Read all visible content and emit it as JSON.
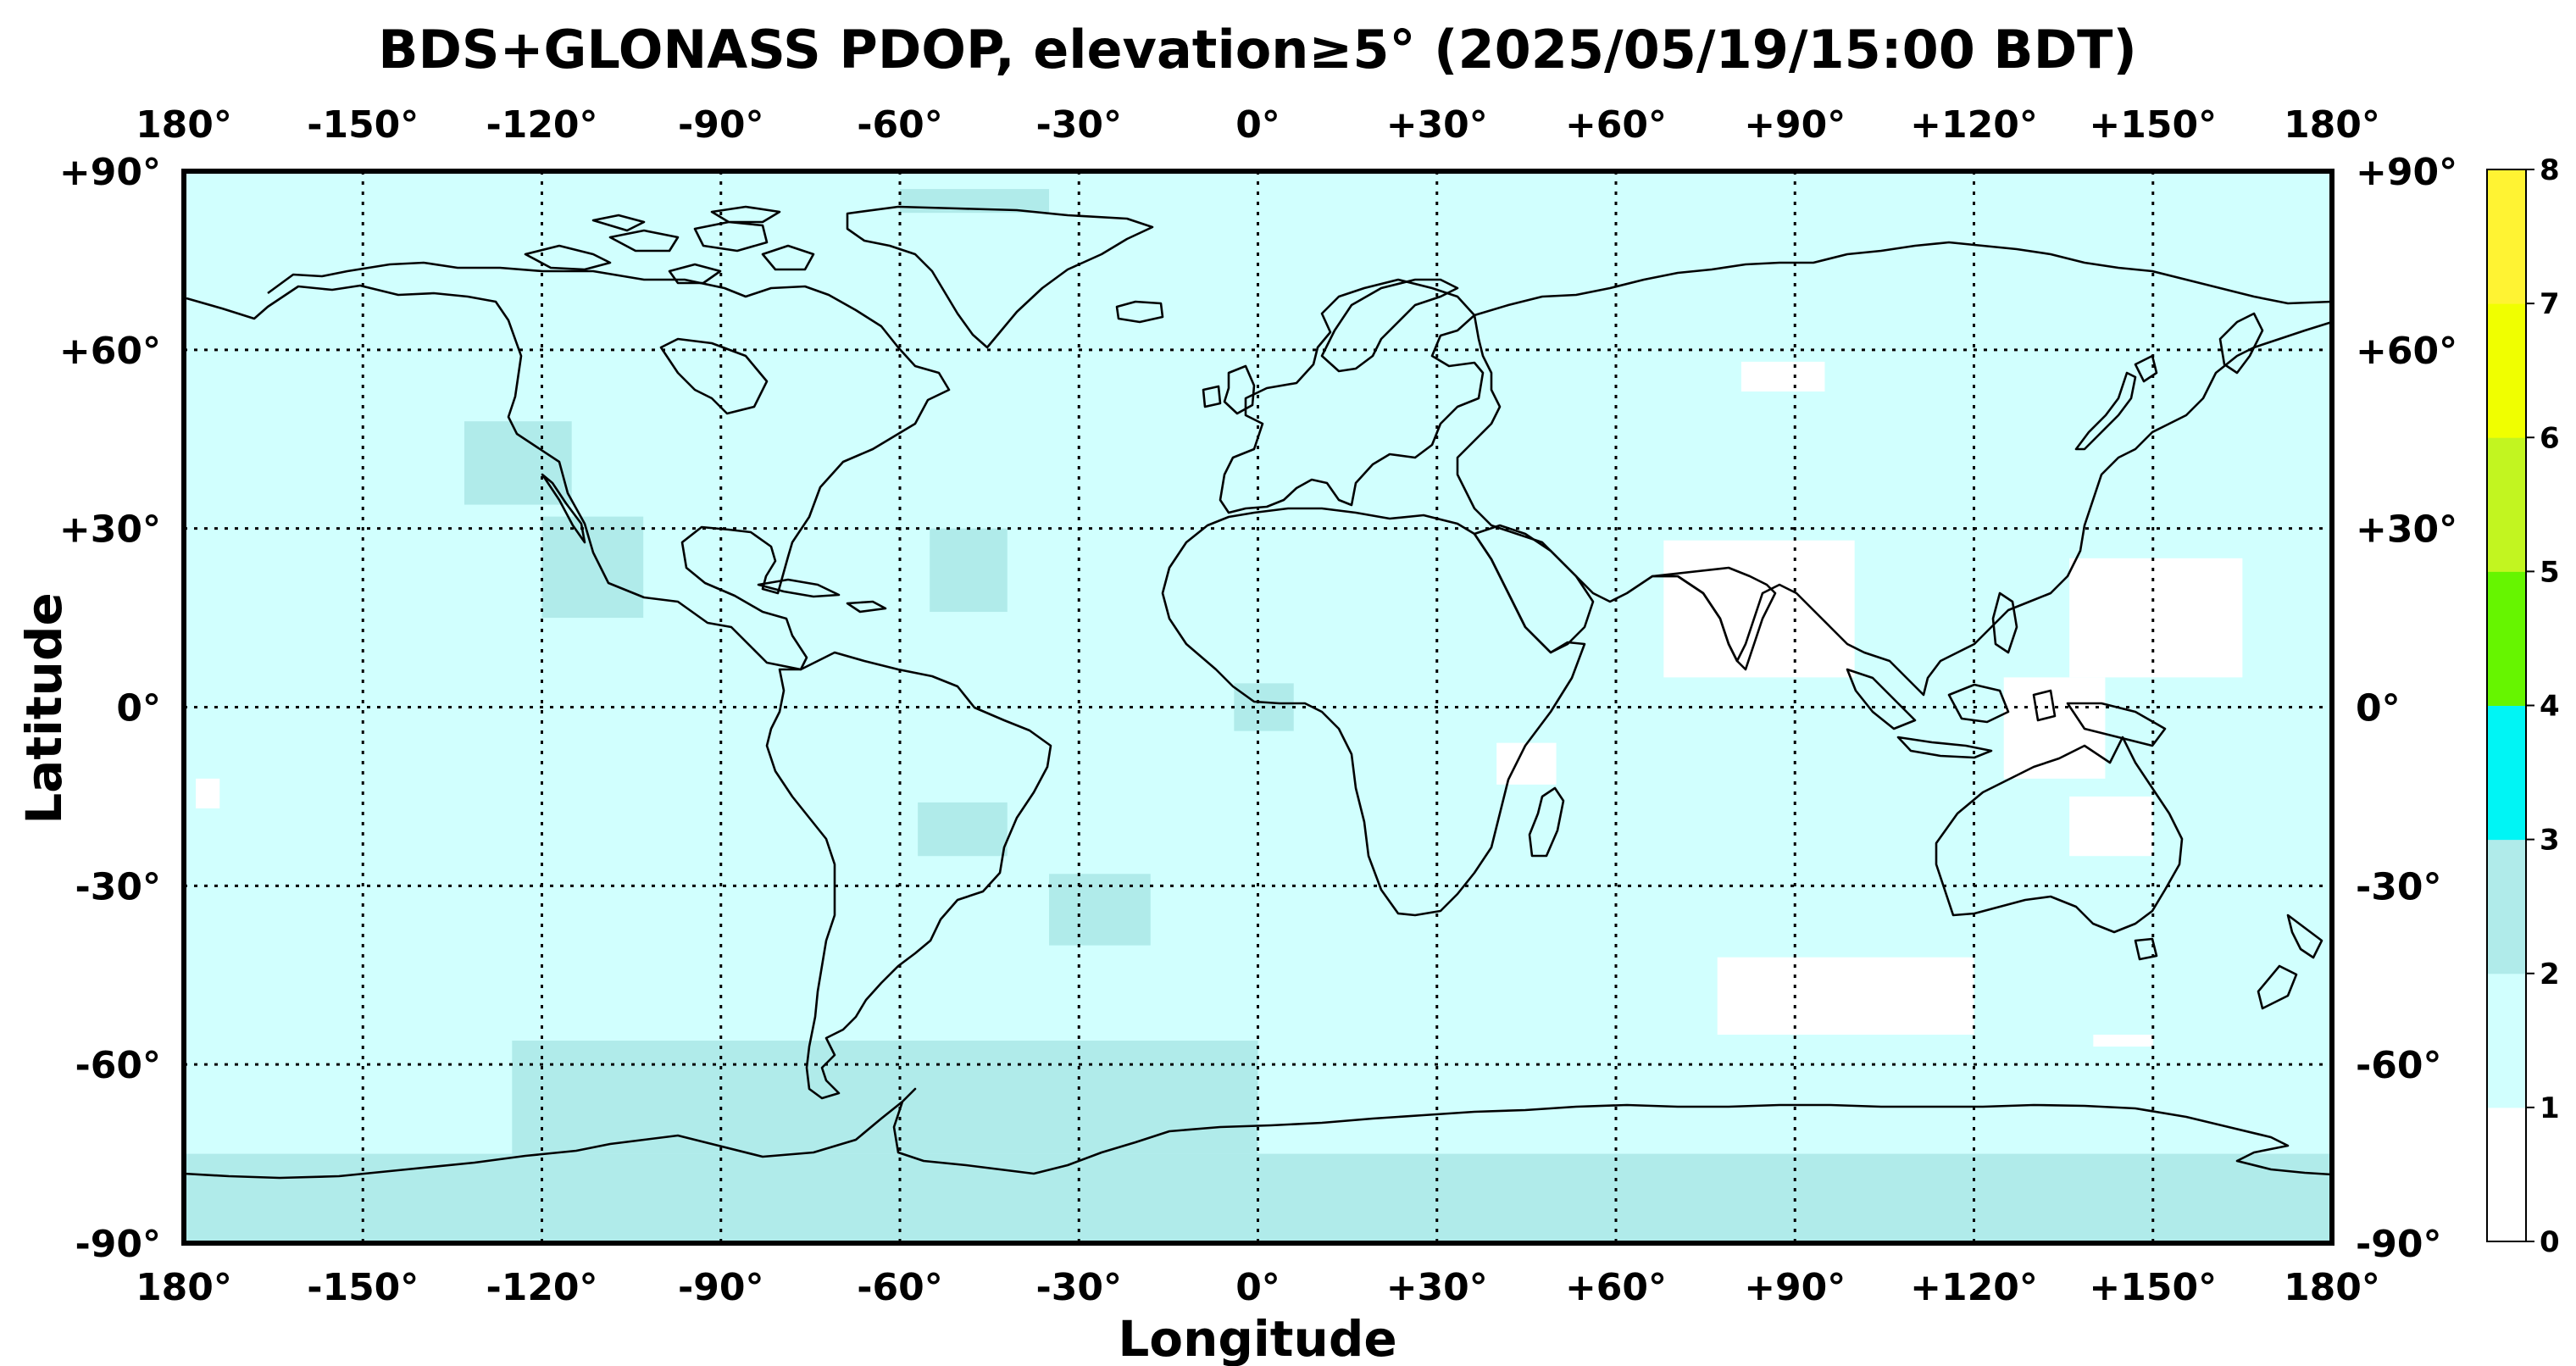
{
  "title": "BDS+GLONASS PDOP, elevation≥5° (2025/05/19/15:00 BDT)",
  "xlabel": "Longitude",
  "ylabel": "Latitude",
  "map": {
    "projection": "equirectangular",
    "lon_range": [
      -180,
      180
    ],
    "lat_range": [
      -90,
      90
    ],
    "lon_ticks": [
      -180,
      -150,
      -120,
      -90,
      -60,
      -30,
      0,
      30,
      60,
      90,
      120,
      150,
      180
    ],
    "lon_tick_labels": [
      "180°",
      "-150°",
      "-120°",
      "-90°",
      "-60°",
      "-30°",
      "0°",
      "+30°",
      "+60°",
      "+90°",
      "+120°",
      "+150°",
      "180°"
    ],
    "lat_ticks": [
      90,
      60,
      30,
      0,
      -30,
      -60,
      -90
    ],
    "lat_tick_labels": [
      "+90°",
      "+60°",
      "+30°",
      "0°",
      "-30°",
      "-60°",
      "-90°"
    ],
    "grid": true,
    "grid_style": "dotted",
    "background_pdop_class": "1-2",
    "coastline_color": "#000000"
  },
  "colorbar": {
    "ticks": [
      "0",
      "1",
      "2",
      "3",
      "4",
      "5",
      "6",
      "7",
      "8"
    ],
    "bins": [
      {
        "range": [
          0,
          1
        ],
        "color": "#ffffff"
      },
      {
        "range": [
          1,
          2
        ],
        "color": "#d1fffe"
      },
      {
        "range": [
          2,
          3
        ],
        "color": "#b0ebea"
      },
      {
        "range": [
          3,
          4
        ],
        "color": "#00f5f5"
      },
      {
        "range": [
          4,
          5
        ],
        "color": "#66f500"
      },
      {
        "range": [
          5,
          6
        ],
        "color": "#c2f520"
      },
      {
        "range": [
          6,
          7
        ],
        "color": "#f0ff00"
      },
      {
        "range": [
          7,
          8
        ],
        "color": "#fff333"
      }
    ]
  },
  "pdop_regions": [
    {
      "class": "0-1",
      "color": "#ffffff",
      "area": "Southern Asia / Indian Ocean",
      "lon": [
        68,
        100
      ],
      "lat": [
        5,
        28
      ]
    },
    {
      "class": "0-1",
      "color": "#ffffff",
      "area": "Western Pacific",
      "lon": [
        136,
        165
      ],
      "lat": [
        5,
        25
      ]
    },
    {
      "class": "0-1",
      "color": "#ffffff",
      "area": "Western Pacific",
      "lon": [
        125,
        142
      ],
      "lat": [
        -12,
        5
      ]
    },
    {
      "class": "0-1",
      "color": "#ffffff",
      "area": "Australia",
      "lon": [
        136,
        150
      ],
      "lat": [
        -25,
        -15
      ]
    },
    {
      "class": "0-1",
      "color": "#ffffff",
      "area": "Southern Indian Ocean",
      "lon": [
        77,
        120
      ],
      "lat": [
        -55,
        -42
      ]
    },
    {
      "class": "0-1",
      "color": "#ffffff",
      "area": "Arabian Sea / SW Indian Ocean",
      "lon": [
        40,
        50
      ],
      "lat": [
        -13,
        -6
      ]
    },
    {
      "class": "0-1",
      "color": "#ffffff",
      "area": "Siberia",
      "lon": [
        81,
        95
      ],
      "lat": [
        53,
        58
      ]
    },
    {
      "class": "0-1",
      "color": "#ffffff",
      "area": "South Pacific",
      "lon": [
        -178,
        -174
      ],
      "lat": [
        -17,
        -12
      ]
    },
    {
      "class": "0-1",
      "color": "#ffffff",
      "area": "Southern Ocean",
      "lon": [
        140,
        150
      ],
      "lat": [
        -57,
        -55
      ]
    },
    {
      "class": "2-3",
      "color": "#b0ebea",
      "area": "Antarctica / Southern Ocean",
      "lon": [
        -180,
        180
      ],
      "lat": [
        -90,
        -75
      ]
    },
    {
      "class": "2-3",
      "color": "#b0ebea",
      "area": "Weddell Sea / Antarctic Peninsula",
      "lon": [
        -125,
        0
      ],
      "lat": [
        -75,
        -56
      ]
    },
    {
      "class": "2-3",
      "color": "#b0ebea",
      "area": "Eastern Antarctica coast",
      "lon": [
        -30,
        0
      ],
      "lat": [
        -75,
        -64
      ]
    },
    {
      "class": "2-3",
      "color": "#b0ebea",
      "area": "Mexico / Gulf of California",
      "lon": [
        -120,
        -103
      ],
      "lat": [
        15,
        32
      ]
    },
    {
      "class": "2-3",
      "color": "#b0ebea",
      "area": "North Atlantic",
      "lon": [
        -55,
        -42
      ],
      "lat": [
        16,
        30
      ]
    },
    {
      "class": "2-3",
      "color": "#b0ebea",
      "area": "Western North America",
      "lon": [
        -133,
        -115
      ],
      "lat": [
        34,
        48
      ]
    },
    {
      "class": "2-3",
      "color": "#b0ebea",
      "area": "South Atlantic",
      "lon": [
        -35,
        -18
      ],
      "lat": [
        -40,
        -28
      ]
    },
    {
      "class": "2-3",
      "color": "#b0ebea",
      "area": "Central South America",
      "lon": [
        -57,
        -42
      ],
      "lat": [
        -25,
        -16
      ]
    },
    {
      "class": "2-3",
      "color": "#b0ebea",
      "area": "Gulf of Guinea",
      "lon": [
        -4,
        6
      ],
      "lat": [
        -4,
        4
      ]
    },
    {
      "class": "2-3",
      "color": "#b0ebea",
      "area": "Arctic",
      "lon": [
        -60,
        -35
      ],
      "lat": [
        83,
        87
      ]
    }
  ]
}
